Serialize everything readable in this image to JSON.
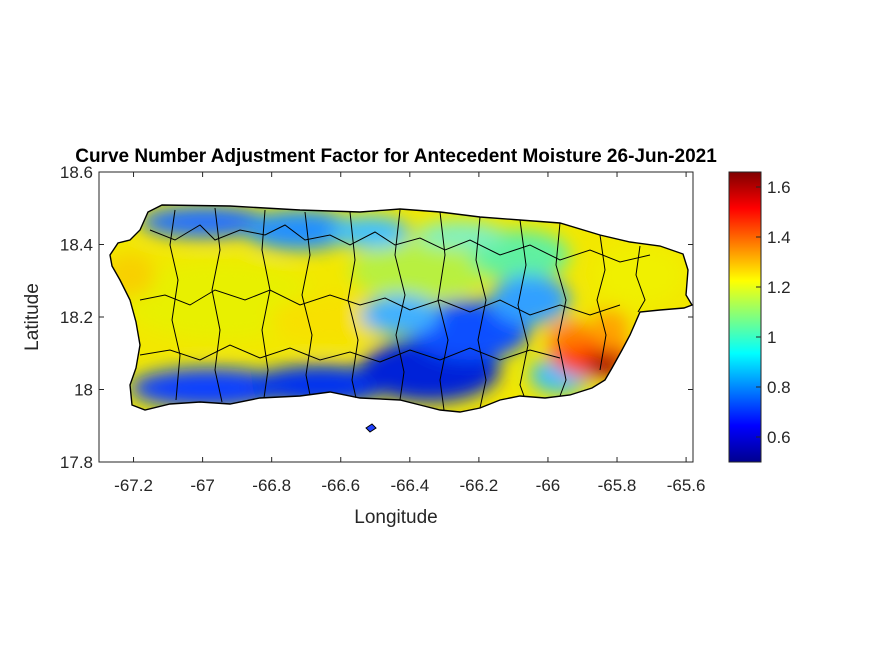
{
  "chart_data": {
    "type": "heatmap",
    "title": "Curve Number Adjustment Factor for Antecedent Moisture 26-Jun-2021",
    "xlabel": "Longitude",
    "ylabel": "Latitude",
    "xlim": [
      -67.3,
      -65.58
    ],
    "ylim": [
      17.8,
      18.6
    ],
    "x_ticks": [
      -67.2,
      -67,
      -66.8,
      -66.6,
      -66.4,
      -66.2,
      -66,
      -65.8,
      -65.6
    ],
    "x_tick_labels": [
      "-67.2",
      "-67",
      "-66.8",
      "-66.6",
      "-66.4",
      "-66.2",
      "-66",
      "-65.8",
      "-65.6"
    ],
    "y_ticks": [
      17.8,
      18,
      18.2,
      18.4,
      18.6
    ],
    "y_tick_labels": [
      "17.8",
      "18",
      "18.2",
      "18.4",
      "18.6"
    ],
    "colormap": "jet",
    "clim": [
      0.5,
      1.66
    ],
    "colorbar_ticks": [
      0.6,
      0.8,
      1,
      1.2,
      1.4,
      1.6
    ],
    "colorbar_tick_labels": [
      "0.6",
      "0.8",
      "1",
      "1.2",
      "1.4",
      "1.6"
    ],
    "grid": false,
    "region_values": [
      {
        "lon": -67.15,
        "lat": 18.33,
        "value": 1.22
      },
      {
        "lon": -66.95,
        "lat": 18.25,
        "value": 1.25
      },
      {
        "lon": -66.7,
        "lat": 18.23,
        "value": 1.2
      },
      {
        "lon": -66.45,
        "lat": 18.27,
        "value": 1.15
      },
      {
        "lon": -66.2,
        "lat": 18.3,
        "value": 1.08
      },
      {
        "lon": -65.95,
        "lat": 18.33,
        "value": 1.05
      },
      {
        "lon": -65.7,
        "lat": 18.33,
        "value": 1.22
      },
      {
        "lon": -66.95,
        "lat": 18.45,
        "value": 0.72
      },
      {
        "lon": -66.7,
        "lat": 18.45,
        "value": 0.85
      },
      {
        "lon": -66.2,
        "lat": 18.15,
        "value": 0.78
      },
      {
        "lon": -66.35,
        "lat": 18.05,
        "value": 0.7
      },
      {
        "lon": -66.8,
        "lat": 18.0,
        "value": 0.65
      },
      {
        "lon": -66.05,
        "lat": 18.05,
        "value": 0.85
      },
      {
        "lon": -65.85,
        "lat": 18.1,
        "value": 1.55
      }
    ]
  }
}
